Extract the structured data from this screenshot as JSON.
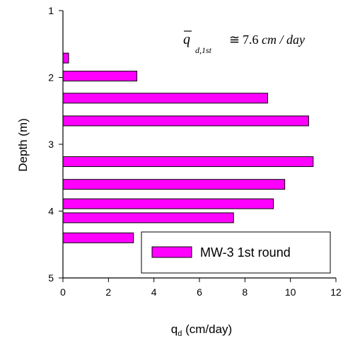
{
  "chart_data": {
    "type": "bar",
    "orientation": "horizontal",
    "xlabel_main": "q",
    "xlabel_sub": "d",
    "xlabel_rest": " (cm/day)",
    "ylabel": "Depth (m)",
    "xlim": [
      0,
      12
    ],
    "ylim": [
      1,
      5
    ],
    "y_inverted": true,
    "x_ticks": [
      0,
      2,
      4,
      6,
      8,
      10,
      12
    ],
    "y_ticks": [
      1,
      2,
      3,
      4,
      5
    ],
    "grid": false,
    "legend_position": "bottom-right",
    "series": [
      {
        "name": "MW-3 1st round",
        "color": "#ff00ff",
        "bars": [
          {
            "depth": 1.71,
            "value": 0.25
          },
          {
            "depth": 1.98,
            "value": 3.25
          },
          {
            "depth": 2.31,
            "value": 9.0
          },
          {
            "depth": 2.65,
            "value": 10.8
          },
          {
            "depth": 3.26,
            "value": 11.0
          },
          {
            "depth": 3.6,
            "value": 9.75
          },
          {
            "depth": 3.89,
            "value": 9.25
          },
          {
            "depth": 4.1,
            "value": 7.5
          },
          {
            "depth": 4.4,
            "value": 3.1
          }
        ]
      }
    ],
    "annotation": {
      "symbol": "q",
      "subscript": "d,1st",
      "relation": "≅",
      "value": "7.6",
      "unit": "cm / day"
    }
  }
}
